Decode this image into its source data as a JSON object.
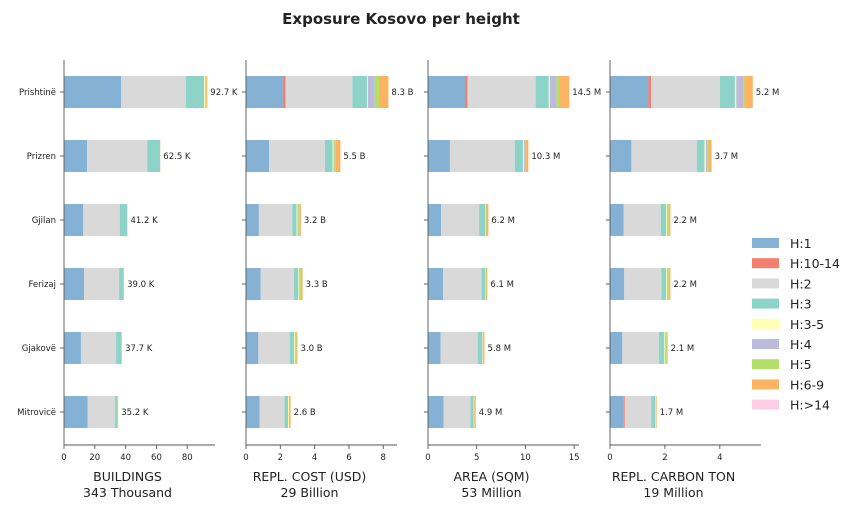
{
  "chart_data": {
    "type": "bar",
    "orientation": "horizontal",
    "stacked": true,
    "title": "Exposure Kosovo per height",
    "categories": [
      "Prishtinë",
      "Prizren",
      "Gjilan",
      "Ferizaj",
      "Gjakovë",
      "Mitrovicë"
    ],
    "legend": {
      "placement": "right",
      "entries": [
        {
          "name": "H:1",
          "color": "#85b1d4"
        },
        {
          "name": "H:10-14",
          "color": "#f47f6f"
        },
        {
          "name": "H:2",
          "color": "#d9d9d9"
        },
        {
          "name": "H:3",
          "color": "#8dd3c7"
        },
        {
          "name": "H:3-5",
          "color": "#ffffb3"
        },
        {
          "name": "H:4",
          "color": "#bebada"
        },
        {
          "name": "H:5",
          "color": "#b3de69"
        },
        {
          "name": "H:6-9",
          "color": "#fdb462"
        },
        {
          "name": "H:>14",
          "color": "#fccde5"
        }
      ]
    },
    "panels": [
      {
        "xlabel": "BUILDINGS",
        "total_label": "343 Thousand",
        "xlim": [
          0,
          98
        ],
        "xticks": [
          0,
          20,
          40,
          60,
          80
        ],
        "totals_labels": [
          "92.7 K",
          "62.5 K",
          "41.2 K",
          "39.0 K",
          "37.7 K",
          "35.2 K"
        ],
        "values": [
          [
            37,
            0,
            42,
            12,
            0.6,
            0.4,
            0.3,
            0.7,
            0
          ],
          [
            15,
            0,
            39,
            8.3,
            0,
            0.1,
            0,
            0.1,
            0
          ],
          [
            12.5,
            0,
            23.7,
            4.8,
            0,
            0.1,
            0,
            0.1,
            0
          ],
          [
            13.0,
            0,
            22.8,
            2.8,
            0.1,
            0.1,
            0.1,
            0.1,
            0
          ],
          [
            11.0,
            0,
            22.8,
            3.5,
            0.1,
            0.1,
            0.1,
            0.1,
            0
          ],
          [
            15.4,
            0,
            17.6,
            1.8,
            0.1,
            0.1,
            0.1,
            0.1,
            0
          ]
        ]
      },
      {
        "xlabel": "REPL. COST (USD)",
        "total_label": "29 Billion",
        "xlim": [
          0,
          8.8
        ],
        "xticks": [
          0,
          2,
          4,
          6,
          8
        ],
        "totals_labels": [
          "8.3 B",
          "5.5 B",
          "3.2 B",
          "3.3 B",
          "3.0 B",
          "2.6 B"
        ],
        "values": [
          [
            2.15,
            0.15,
            3.9,
            0.85,
            0.05,
            0.4,
            0.25,
            0.55,
            0
          ],
          [
            1.35,
            0,
            3.25,
            0.45,
            0.05,
            0.05,
            0.05,
            0.3,
            0
          ],
          [
            0.75,
            0,
            1.95,
            0.25,
            0.05,
            0.05,
            0.05,
            0.1,
            0
          ],
          [
            0.85,
            0,
            1.95,
            0.25,
            0.05,
            0.05,
            0.05,
            0.1,
            0
          ],
          [
            0.72,
            0,
            1.83,
            0.25,
            0.05,
            0.05,
            0.05,
            0.05,
            0
          ],
          [
            0.8,
            0,
            1.45,
            0.2,
            0.05,
            0,
            0,
            0.1,
            0
          ]
        ]
      },
      {
        "xlabel": "AREA (SQM)",
        "total_label": "53 Million",
        "xlim": [
          0,
          15.5
        ],
        "xticks": [
          0,
          5,
          10,
          15
        ],
        "totals_labels": [
          "14.5 M",
          "10.3 M",
          "6.2 M",
          "6.1 M",
          "5.8 M",
          "4.9 M"
        ],
        "values": [
          [
            3.8,
            0.25,
            7.0,
            1.35,
            0.1,
            0.7,
            0.3,
            1.0,
            0
          ],
          [
            2.25,
            0,
            6.65,
            0.85,
            0.1,
            0.1,
            0.1,
            0.25,
            0
          ],
          [
            1.35,
            0,
            3.9,
            0.6,
            0.05,
            0.05,
            0.05,
            0.2,
            0
          ],
          [
            1.55,
            0,
            3.95,
            0.35,
            0.05,
            0.05,
            0.05,
            0.1,
            0
          ],
          [
            1.3,
            0,
            3.8,
            0.45,
            0.05,
            0.05,
            0.05,
            0.1,
            0
          ],
          [
            1.6,
            0,
            2.75,
            0.35,
            0.05,
            0,
            0,
            0.15,
            0
          ]
        ]
      },
      {
        "xlabel": "REPL. CARBON TON",
        "total_label": "19 Million",
        "xlim": [
          0,
          5.5
        ],
        "xticks": [
          0,
          2,
          4
        ],
        "totals_labels": [
          "5.2 M",
          "3.7 M",
          "2.2 M",
          "2.2 M",
          "2.1 M",
          "1.7 M"
        ],
        "values": [
          [
            1.4,
            0.1,
            2.5,
            0.55,
            0.05,
            0.25,
            0.05,
            0.3,
            0
          ],
          [
            0.78,
            0,
            2.38,
            0.28,
            0.05,
            0.05,
            0.05,
            0.11,
            0
          ],
          [
            0.5,
            0,
            1.35,
            0.2,
            0.03,
            0.03,
            0.03,
            0.06,
            0
          ],
          [
            0.52,
            0,
            1.35,
            0.18,
            0.03,
            0.03,
            0.03,
            0.06,
            0
          ],
          [
            0.45,
            0,
            1.33,
            0.2,
            0.03,
            0.03,
            0.03,
            0.03,
            0
          ],
          [
            0.5,
            0.04,
            0.96,
            0.14,
            0.02,
            0,
            0,
            0.04,
            0
          ]
        ]
      }
    ]
  }
}
